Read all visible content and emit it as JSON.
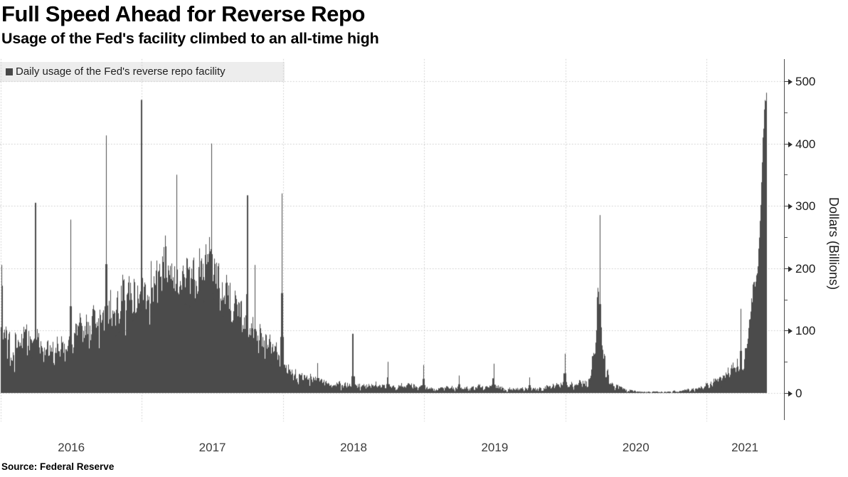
{
  "chart_data": {
    "type": "bar",
    "title": "Full Speed Ahead for Reverse Repo",
    "subtitle": "Usage of the Fed's facility climbed to an all-time high",
    "legend": [
      "Daily usage of the Fed's reverse repo facility"
    ],
    "ylabel": "Dollars (Billions)",
    "source": "Source: Federal Reserve",
    "unit": "USD billions, daily",
    "ylim": [
      0,
      500
    ],
    "ytick_values": [
      0,
      100,
      200,
      300,
      400,
      500
    ],
    "ytick_labels": [
      "0",
      "100",
      "200",
      "300",
      "400",
      "500"
    ],
    "ytick_minor_values": [
      50,
      150,
      250,
      350,
      450
    ],
    "xtick_labels": [
      "2016",
      "2017",
      "2018",
      "2019",
      "2020",
      "2021"
    ],
    "x_start": 2016.0,
    "x_end": 2021.425,
    "grid": true,
    "legend_position": "top-left",
    "axis_position": "right",
    "bar_color": "#4b4b4b",
    "grid_color": "#c9c9c9",
    "legend_bg_color": "#ededed",
    "key_points": [
      {
        "date": "2016-01-04",
        "value": 205
      },
      {
        "date": "2016-03-31",
        "value": 305
      },
      {
        "date": "2016-06-30",
        "value": 278
      },
      {
        "date": "2016-09-30",
        "value": 413
      },
      {
        "date": "2016-12-30",
        "value": 470
      },
      {
        "date": "2017-03-31",
        "value": 350
      },
      {
        "date": "2017-06-30",
        "value": 400
      },
      {
        "date": "2017-09-29",
        "value": 317
      },
      {
        "date": "2017-12-29",
        "value": 320
      },
      {
        "date": "2018-03-29",
        "value": 48
      },
      {
        "date": "2018-06-29",
        "value": 95
      },
      {
        "date": "2018-09-28",
        "value": 50
      },
      {
        "date": "2018-12-31",
        "value": 45
      },
      {
        "date": "2019-06-28",
        "value": 47
      },
      {
        "date": "2019-12-31",
        "value": 63
      },
      {
        "date": "2020-03-31",
        "value": 285
      },
      {
        "date": "2020-12-31",
        "value": 12
      },
      {
        "date": "2021-03-31",
        "value": 135
      },
      {
        "date": "2021-05 end of series (all-time high)",
        "value": 490
      }
    ],
    "envelope": [
      [
        2016.0,
        40,
        120
      ],
      [
        2016.08,
        30,
        100
      ],
      [
        2016.17,
        40,
        115
      ],
      [
        2016.26,
        35,
        105
      ],
      [
        2016.33,
        35,
        95
      ],
      [
        2016.42,
        40,
        105
      ],
      [
        2016.51,
        45,
        115
      ],
      [
        2016.58,
        55,
        140
      ],
      [
        2016.67,
        60,
        160
      ],
      [
        2016.76,
        75,
        165
      ],
      [
        2016.83,
        85,
        190
      ],
      [
        2016.92,
        95,
        205
      ],
      [
        2017.0,
        80,
        185
      ],
      [
        2017.08,
        105,
        220
      ],
      [
        2017.17,
        125,
        260
      ],
      [
        2017.26,
        110,
        215
      ],
      [
        2017.33,
        125,
        235
      ],
      [
        2017.42,
        135,
        250
      ],
      [
        2017.49,
        150,
        260
      ],
      [
        2017.51,
        130,
        240
      ],
      [
        2017.58,
        105,
        200
      ],
      [
        2017.67,
        85,
        175
      ],
      [
        2017.75,
        65,
        135
      ],
      [
        2017.83,
        50,
        115
      ],
      [
        2017.92,
        40,
        95
      ],
      [
        2018.0,
        25,
        75
      ],
      [
        2018.05,
        12,
        48
      ],
      [
        2018.08,
        8,
        42
      ],
      [
        2018.17,
        6,
        35
      ],
      [
        2018.25,
        5,
        28
      ],
      [
        2018.33,
        3,
        20
      ],
      [
        2018.42,
        4,
        24
      ],
      [
        2018.5,
        2,
        16
      ],
      [
        2018.58,
        2,
        15
      ],
      [
        2018.67,
        3,
        20
      ],
      [
        2018.75,
        2,
        15
      ],
      [
        2018.83,
        2,
        18
      ],
      [
        2018.92,
        3,
        24
      ],
      [
        2019.0,
        2,
        14
      ],
      [
        2019.08,
        1,
        10
      ],
      [
        2019.17,
        2,
        14
      ],
      [
        2019.25,
        1,
        10
      ],
      [
        2019.33,
        1,
        12
      ],
      [
        2019.42,
        2,
        16
      ],
      [
        2019.5,
        2,
        16
      ],
      [
        2019.58,
        1,
        10
      ],
      [
        2019.67,
        1,
        12
      ],
      [
        2019.75,
        1,
        9
      ],
      [
        2019.83,
        1,
        10
      ],
      [
        2019.92,
        2,
        18
      ],
      [
        2020.0,
        2,
        16
      ],
      [
        2020.08,
        3,
        22
      ],
      [
        2020.16,
        5,
        30
      ],
      [
        2020.2,
        15,
        90
      ],
      [
        2020.24,
        40,
        230
      ],
      [
        2020.27,
        15,
        70
      ],
      [
        2020.33,
        4,
        22
      ],
      [
        2020.42,
        1,
        8
      ],
      [
        2020.5,
        0,
        4
      ],
      [
        2020.58,
        0,
        3
      ],
      [
        2020.67,
        0,
        3
      ],
      [
        2020.75,
        0,
        4
      ],
      [
        2020.83,
        0,
        6
      ],
      [
        2020.92,
        1,
        10
      ],
      [
        2021.0,
        3,
        22
      ],
      [
        2021.08,
        5,
        30
      ],
      [
        2021.17,
        12,
        55
      ],
      [
        2021.24,
        30,
        65
      ],
      [
        2021.26,
        28,
        55
      ],
      [
        2021.3,
        85,
        120
      ],
      [
        2021.33,
        155,
        190
      ],
      [
        2021.35,
        165,
        188
      ],
      [
        2021.37,
        195,
        245
      ],
      [
        2021.385,
        270,
        330
      ],
      [
        2021.4,
        370,
        440
      ],
      [
        2021.415,
        455,
        488
      ],
      [
        2021.425,
        480,
        490
      ]
    ],
    "spikes": [
      [
        2016.004,
        205
      ],
      [
        2016.008,
        172
      ],
      [
        2016.245,
        305
      ],
      [
        2016.493,
        278
      ],
      [
        2016.745,
        413
      ],
      [
        2016.995,
        470
      ],
      [
        2017.245,
        350
      ],
      [
        2017.493,
        400
      ],
      [
        2017.745,
        317
      ],
      [
        2017.8,
        205
      ],
      [
        2017.99,
        320
      ],
      [
        2018.245,
        48
      ],
      [
        2018.493,
        95
      ],
      [
        2018.74,
        50
      ],
      [
        2018.995,
        45
      ],
      [
        2019.245,
        28
      ],
      [
        2019.49,
        47
      ],
      [
        2019.745,
        25
      ],
      [
        2019.995,
        63
      ],
      [
        2020.245,
        285
      ],
      [
        2020.995,
        12
      ],
      [
        2021.243,
        135
      ]
    ]
  }
}
